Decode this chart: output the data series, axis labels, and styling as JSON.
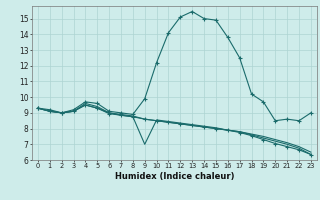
{
  "background_color": "#ceecea",
  "grid_color": "#aed4d2",
  "line_color": "#1a6b6b",
  "xlabel": "Humidex (Indice chaleur)",
  "xlim": [
    -0.5,
    23.5
  ],
  "ylim": [
    6,
    15.8
  ],
  "yticks": [
    6,
    7,
    8,
    9,
    10,
    11,
    12,
    13,
    14,
    15
  ],
  "xticks": [
    0,
    1,
    2,
    3,
    4,
    5,
    6,
    7,
    8,
    9,
    10,
    11,
    12,
    13,
    14,
    15,
    16,
    17,
    18,
    19,
    20,
    21,
    22,
    23
  ],
  "series": [
    {
      "x": [
        0,
        1,
        2,
        3,
        4,
        5,
        6,
        7,
        8,
        9,
        10,
        11,
        12,
        13,
        14,
        15,
        16,
        17,
        18,
        19,
        20,
        21,
        22,
        23
      ],
      "y": [
        9.3,
        9.2,
        9.0,
        9.2,
        9.7,
        9.6,
        9.1,
        9.0,
        8.9,
        9.9,
        12.2,
        14.1,
        15.1,
        15.45,
        15.0,
        14.9,
        13.8,
        12.5,
        10.2,
        9.7,
        8.5,
        8.6,
        8.5,
        9.0
      ],
      "marker": "+"
    },
    {
      "x": [
        0,
        1,
        2,
        3,
        4,
        5,
        6,
        7,
        8,
        9,
        10,
        11,
        12,
        13,
        14,
        15,
        16,
        17,
        18,
        19,
        20,
        21,
        22,
        23
      ],
      "y": [
        9.3,
        9.1,
        9.0,
        9.1,
        9.6,
        9.4,
        9.0,
        8.9,
        8.8,
        8.6,
        8.5,
        8.4,
        8.3,
        8.2,
        8.1,
        8.0,
        7.9,
        7.8,
        7.65,
        7.5,
        7.3,
        7.1,
        6.85,
        6.5
      ],
      "marker": null
    },
    {
      "x": [
        0,
        1,
        2,
        3,
        4,
        5,
        6,
        7,
        8,
        9,
        10,
        11,
        12,
        13,
        14,
        15,
        16,
        17,
        18,
        19,
        20,
        21,
        22,
        23
      ],
      "y": [
        9.3,
        9.1,
        9.0,
        9.1,
        9.5,
        9.3,
        8.95,
        8.85,
        8.75,
        8.6,
        8.5,
        8.4,
        8.3,
        8.2,
        8.1,
        8.0,
        7.9,
        7.75,
        7.55,
        7.3,
        7.05,
        6.85,
        6.65,
        6.35
      ],
      "marker": "+"
    },
    {
      "x": [
        0,
        1,
        2,
        3,
        4,
        5,
        6,
        7,
        8,
        9,
        10,
        11,
        12,
        13,
        14,
        15,
        16,
        17,
        18,
        19,
        20,
        21,
        22,
        23
      ],
      "y": [
        9.3,
        9.1,
        9.0,
        9.1,
        9.5,
        9.3,
        9.0,
        8.85,
        8.75,
        7.0,
        8.55,
        8.45,
        8.35,
        8.25,
        8.15,
        8.05,
        7.9,
        7.8,
        7.6,
        7.4,
        7.2,
        7.0,
        6.75,
        6.35
      ],
      "marker": null
    }
  ]
}
